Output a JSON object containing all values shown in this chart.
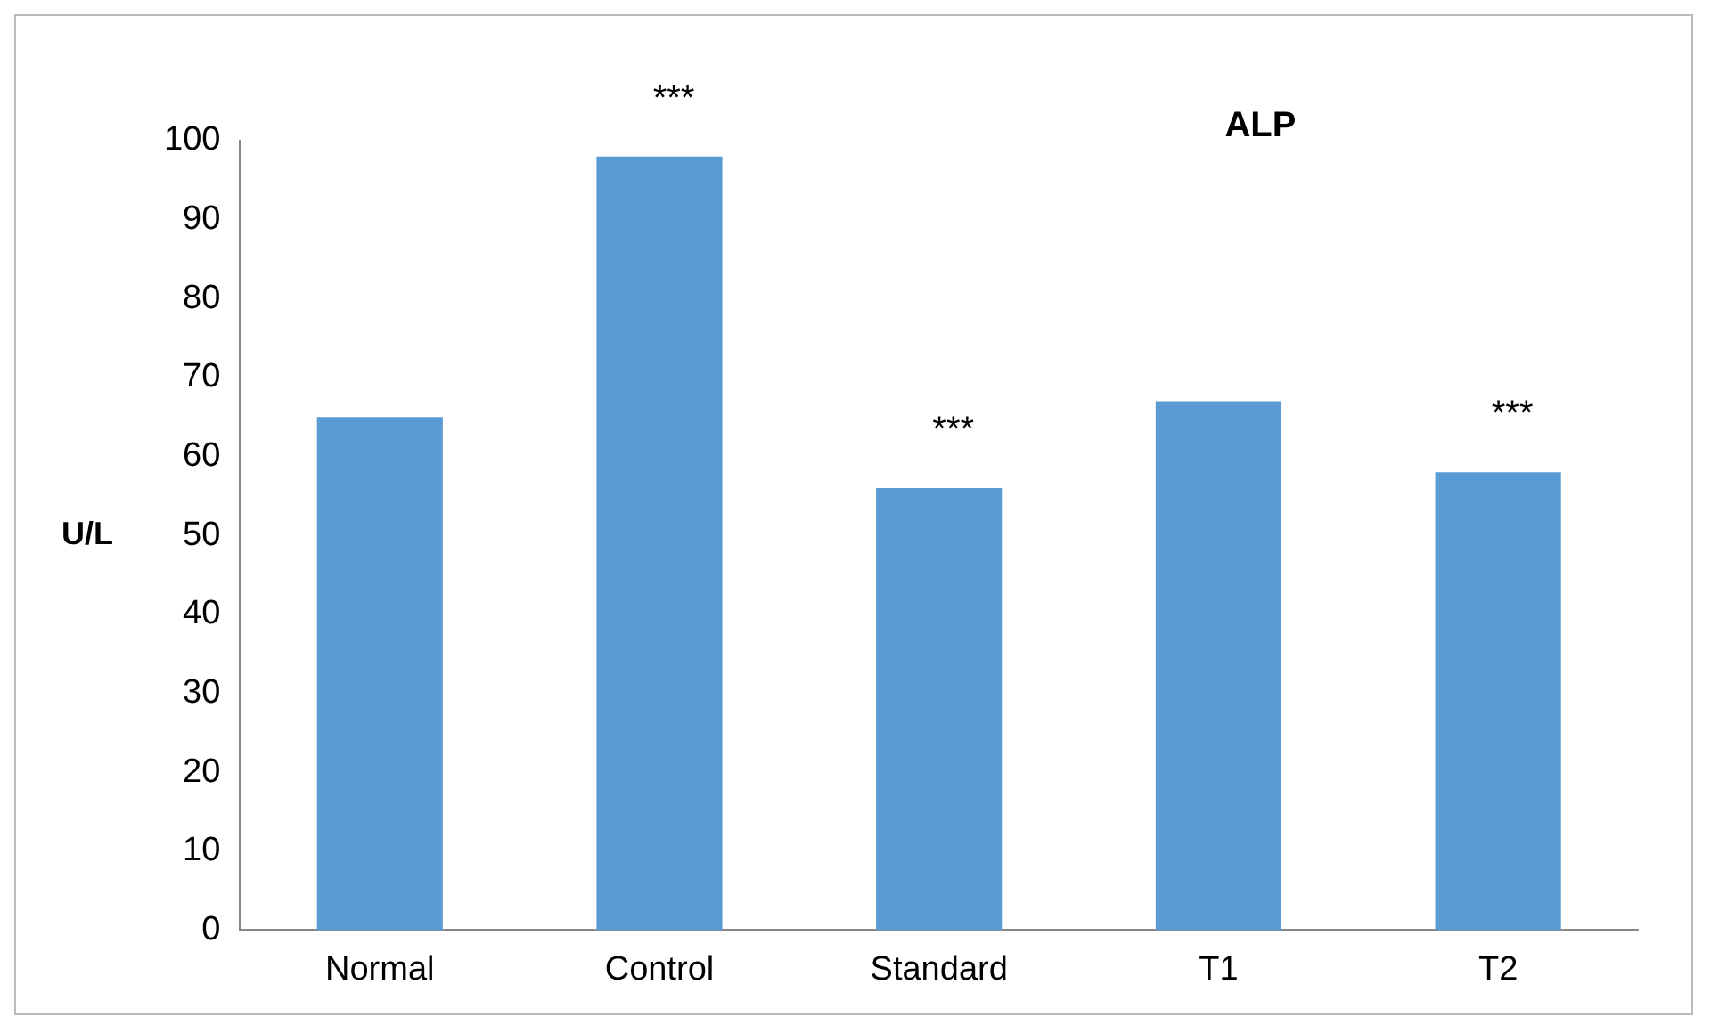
{
  "chart_data": {
    "type": "bar",
    "title": "ALP",
    "ylabel": "U/L",
    "categories": [
      "Normal",
      "Control",
      "Standard",
      "T1",
      "T2"
    ],
    "values": [
      65,
      98,
      56,
      67,
      58
    ],
    "color": "#5b9bd5",
    "ylim": [
      0,
      100
    ],
    "yticks": [
      0,
      10,
      20,
      30,
      40,
      50,
      60,
      70,
      80,
      90,
      100
    ],
    "grid": false,
    "legend": false,
    "annotations": [
      {
        "text": "***",
        "x": "Control",
        "y": 98
      },
      {
        "text": "***",
        "x": "Standard",
        "y": 56
      },
      {
        "text": "***",
        "x": "T2",
        "y": 58
      }
    ]
  }
}
